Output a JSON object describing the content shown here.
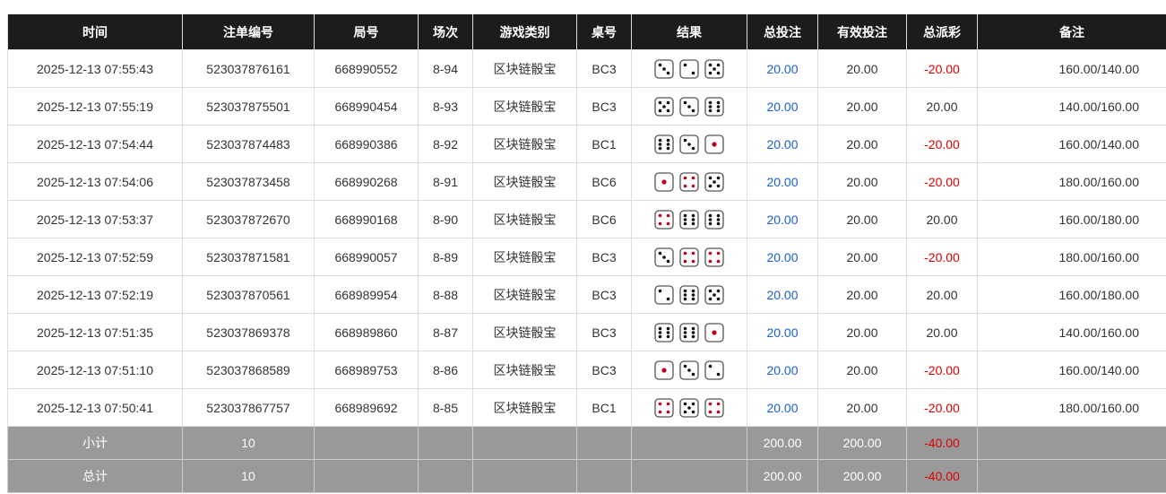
{
  "headers": [
    "时间",
    "注单编号",
    "局号",
    "场次",
    "游戏类别",
    "桌号",
    "结果",
    "总投注",
    "有效投注",
    "总派彩",
    "备注"
  ],
  "rows": [
    {
      "time": "2025-12-13 07:55:43",
      "bet_id": "523037876161",
      "round": "668990552",
      "session": "8-94",
      "game": "区块链骰宝",
      "table": "BC3",
      "dice": [
        3,
        2,
        5
      ],
      "total_bet": "20.00",
      "valid_bet": "20.00",
      "payout": "-20.00",
      "payout_negative": true,
      "note": "160.00/140.00"
    },
    {
      "time": "2025-12-13 07:55:19",
      "bet_id": "523037875501",
      "round": "668990454",
      "session": "8-93",
      "game": "区块链骰宝",
      "table": "BC3",
      "dice": [
        5,
        3,
        6
      ],
      "total_bet": "20.00",
      "valid_bet": "20.00",
      "payout": "20.00",
      "payout_negative": false,
      "note": "140.00/160.00"
    },
    {
      "time": "2025-12-13 07:54:44",
      "bet_id": "523037874483",
      "round": "668990386",
      "session": "8-92",
      "game": "区块链骰宝",
      "table": "BC1",
      "dice": [
        6,
        3,
        1
      ],
      "total_bet": "20.00",
      "valid_bet": "20.00",
      "payout": "-20.00",
      "payout_negative": true,
      "note": "160.00/140.00"
    },
    {
      "time": "2025-12-13 07:54:06",
      "bet_id": "523037873458",
      "round": "668990268",
      "session": "8-91",
      "game": "区块链骰宝",
      "table": "BC6",
      "dice": [
        1,
        4,
        5
      ],
      "total_bet": "20.00",
      "valid_bet": "20.00",
      "payout": "-20.00",
      "payout_negative": true,
      "note": "180.00/160.00"
    },
    {
      "time": "2025-12-13 07:53:37",
      "bet_id": "523037872670",
      "round": "668990168",
      "session": "8-90",
      "game": "区块链骰宝",
      "table": "BC6",
      "dice": [
        4,
        6,
        6
      ],
      "total_bet": "20.00",
      "valid_bet": "20.00",
      "payout": "20.00",
      "payout_negative": false,
      "note": "160.00/180.00"
    },
    {
      "time": "2025-12-13 07:52:59",
      "bet_id": "523037871581",
      "round": "668990057",
      "session": "8-89",
      "game": "区块链骰宝",
      "table": "BC3",
      "dice": [
        3,
        4,
        4
      ],
      "total_bet": "20.00",
      "valid_bet": "20.00",
      "payout": "-20.00",
      "payout_negative": true,
      "note": "180.00/160.00"
    },
    {
      "time": "2025-12-13 07:52:19",
      "bet_id": "523037870561",
      "round": "668989954",
      "session": "8-88",
      "game": "区块链骰宝",
      "table": "BC3",
      "dice": [
        2,
        6,
        5
      ],
      "total_bet": "20.00",
      "valid_bet": "20.00",
      "payout": "20.00",
      "payout_negative": false,
      "note": "160.00/180.00"
    },
    {
      "time": "2025-12-13 07:51:35",
      "bet_id": "523037869378",
      "round": "668989860",
      "session": "8-87",
      "game": "区块链骰宝",
      "table": "BC3",
      "dice": [
        6,
        6,
        1
      ],
      "total_bet": "20.00",
      "valid_bet": "20.00",
      "payout": "20.00",
      "payout_negative": false,
      "note": "140.00/160.00"
    },
    {
      "time": "2025-12-13 07:51:10",
      "bet_id": "523037868589",
      "round": "668989753",
      "session": "8-86",
      "game": "区块链骰宝",
      "table": "BC3",
      "dice": [
        1,
        3,
        2
      ],
      "total_bet": "20.00",
      "valid_bet": "20.00",
      "payout": "-20.00",
      "payout_negative": true,
      "note": "160.00/140.00"
    },
    {
      "time": "2025-12-13 07:50:41",
      "bet_id": "523037867757",
      "round": "668989692",
      "session": "8-85",
      "game": "区块链骰宝",
      "table": "BC1",
      "dice": [
        4,
        5,
        4
      ],
      "total_bet": "20.00",
      "valid_bet": "20.00",
      "payout": "-20.00",
      "payout_negative": true,
      "note": "180.00/160.00"
    }
  ],
  "summary": [
    {
      "label": "小计",
      "count": "10",
      "total_bet": "200.00",
      "valid_bet": "200.00",
      "payout": "-40.00"
    },
    {
      "label": "总计",
      "count": "10",
      "total_bet": "200.00",
      "valid_bet": "200.00",
      "payout": "-40.00"
    }
  ],
  "colors": {
    "header_bg": "#1c1c1c",
    "total_bet": "#1a5fd0",
    "negative": "#e00000",
    "summary_bg": "#999999",
    "die_red_pip": "#c0001a"
  }
}
